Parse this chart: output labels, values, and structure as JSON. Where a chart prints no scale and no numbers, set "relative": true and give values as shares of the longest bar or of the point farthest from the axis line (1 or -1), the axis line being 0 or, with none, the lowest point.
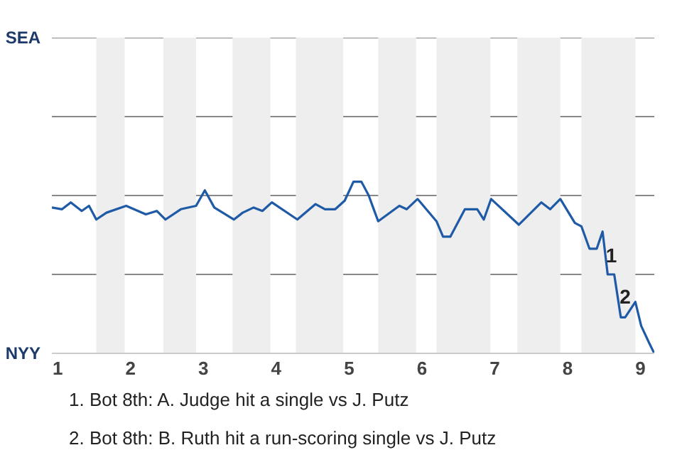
{
  "chart_data": {
    "type": "line",
    "relative": true,
    "xlim": [
      0.92,
      9.19
    ],
    "xticks": [
      1,
      2,
      3,
      4,
      5,
      6,
      7,
      8,
      9
    ],
    "marker": "none",
    "line_style": "solid",
    "ref_lines": [
      {
        "axis": "y",
        "value": 0.46,
        "color": "#888888"
      },
      {
        "axis": "y",
        "value": 0.92,
        "color": "#888888"
      },
      {
        "axis": "y",
        "value": 1.38,
        "color": "#888888"
      },
      {
        "axis": "y",
        "value": 1.84,
        "color": "#888888"
      }
    ],
    "series": [
      {
        "color": "#1f5aa6",
        "x": [
          0.92,
          1.06,
          1.18,
          1.33,
          1.43,
          1.53,
          1.67,
          1.94,
          2.21,
          2.36,
          2.48,
          2.69,
          2.9,
          3.02,
          3.15,
          3.42,
          3.54,
          3.69,
          3.81,
          3.94,
          4.29,
          4.54,
          4.67,
          4.81,
          4.94,
          5.06,
          5.17,
          5.27,
          5.33,
          5.4,
          5.69,
          5.79,
          5.94,
          6.2,
          6.29,
          6.39,
          6.59,
          6.76,
          6.85,
          6.95,
          7.33,
          7.64,
          7.76,
          7.9,
          8.1,
          8.19,
          8.3,
          8.4,
          8.48,
          8.55,
          8.64,
          8.73,
          8.79,
          8.93,
          9.01,
          9.12,
          9.19
        ],
        "values": [
          0.85,
          0.84,
          0.88,
          0.83,
          0.86,
          0.78,
          0.82,
          0.86,
          0.81,
          0.83,
          0.78,
          0.84,
          0.86,
          0.95,
          0.85,
          0.78,
          0.82,
          0.85,
          0.83,
          0.88,
          0.78,
          0.87,
          0.84,
          0.84,
          0.89,
          1,
          1,
          0.92,
          0.85,
          0.77,
          0.86,
          0.84,
          0.9,
          0.77,
          0.68,
          0.68,
          0.84,
          0.84,
          0.78,
          0.9,
          0.75,
          0.88,
          0.84,
          0.9,
          0.76,
          0.74,
          0.61,
          0.61,
          0.71,
          0.46,
          0.46,
          0.21,
          0.21,
          0.3,
          0.16,
          0.06,
          0
        ]
      }
    ],
    "bands": [
      {
        "axis": "x",
        "from": 1.53,
        "to": 1.92,
        "color": "#eeeeee"
      },
      {
        "axis": "x",
        "from": 2.45,
        "to": 2.9,
        "color": "#eeeeee"
      },
      {
        "axis": "x",
        "from": 3.4,
        "to": 3.92,
        "color": "#eeeeee"
      },
      {
        "axis": "x",
        "from": 4.27,
        "to": 4.92,
        "color": "#eeeeee"
      },
      {
        "axis": "x",
        "from": 5.4,
        "to": 5.92,
        "color": "#eeeeee"
      },
      {
        "axis": "x",
        "from": 6.2,
        "to": 6.94,
        "color": "#eeeeee"
      },
      {
        "axis": "x",
        "from": 7.31,
        "to": 7.9,
        "color": "#eeeeee"
      },
      {
        "axis": "x",
        "from": 8.19,
        "to": 8.93,
        "color": "#eeeeee"
      }
    ],
    "annotations": [
      "SEA",
      "NYY",
      {
        "text": "1",
        "x": 8.6,
        "y": 0.53
      },
      {
        "text": "2",
        "x": 8.79,
        "y": 0.29
      },
      "1. Bot 8th: A. Judge hit a single vs J. Putz",
      "2. Bot 8th: B. Ruth hit a run-scoring single vs J. Putz"
    ]
  }
}
